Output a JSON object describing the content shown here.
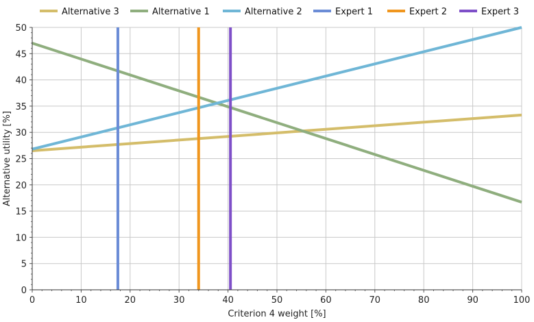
{
  "chart_data": {
    "type": "line",
    "title": "",
    "xlabel": "Criterion 4 weight [%]",
    "ylabel": "Alternative utility [%]",
    "xlim": [
      0,
      100
    ],
    "ylim": [
      0,
      50
    ],
    "xticks": [
      0,
      10,
      20,
      30,
      40,
      50,
      60,
      70,
      80,
      90,
      100
    ],
    "yticks": [
      0,
      5,
      10,
      15,
      20,
      25,
      30,
      35,
      40,
      45,
      50
    ],
    "grid": true,
    "legend_position": "top",
    "series": [
      {
        "name": "Alternative 3",
        "kind": "line",
        "color": "#d4bd6a",
        "x": [
          0,
          100
        ],
        "y": [
          26.5,
          33.3
        ]
      },
      {
        "name": "Alternative 1",
        "kind": "line",
        "color": "#8fae7e",
        "x": [
          0,
          100
        ],
        "y": [
          47.0,
          16.7
        ]
      },
      {
        "name": "Alternative 2",
        "kind": "line",
        "color": "#6fb6d6",
        "x": [
          0,
          100
        ],
        "y": [
          26.8,
          50.0
        ]
      },
      {
        "name": "Expert 1",
        "kind": "vline",
        "color": "#6b8cd6",
        "x": 17.5
      },
      {
        "name": "Expert 2",
        "kind": "vline",
        "color": "#f0961e",
        "x": 34.0
      },
      {
        "name": "Expert 3",
        "kind": "vline",
        "color": "#7e4fc8",
        "x": 40.5
      }
    ]
  }
}
